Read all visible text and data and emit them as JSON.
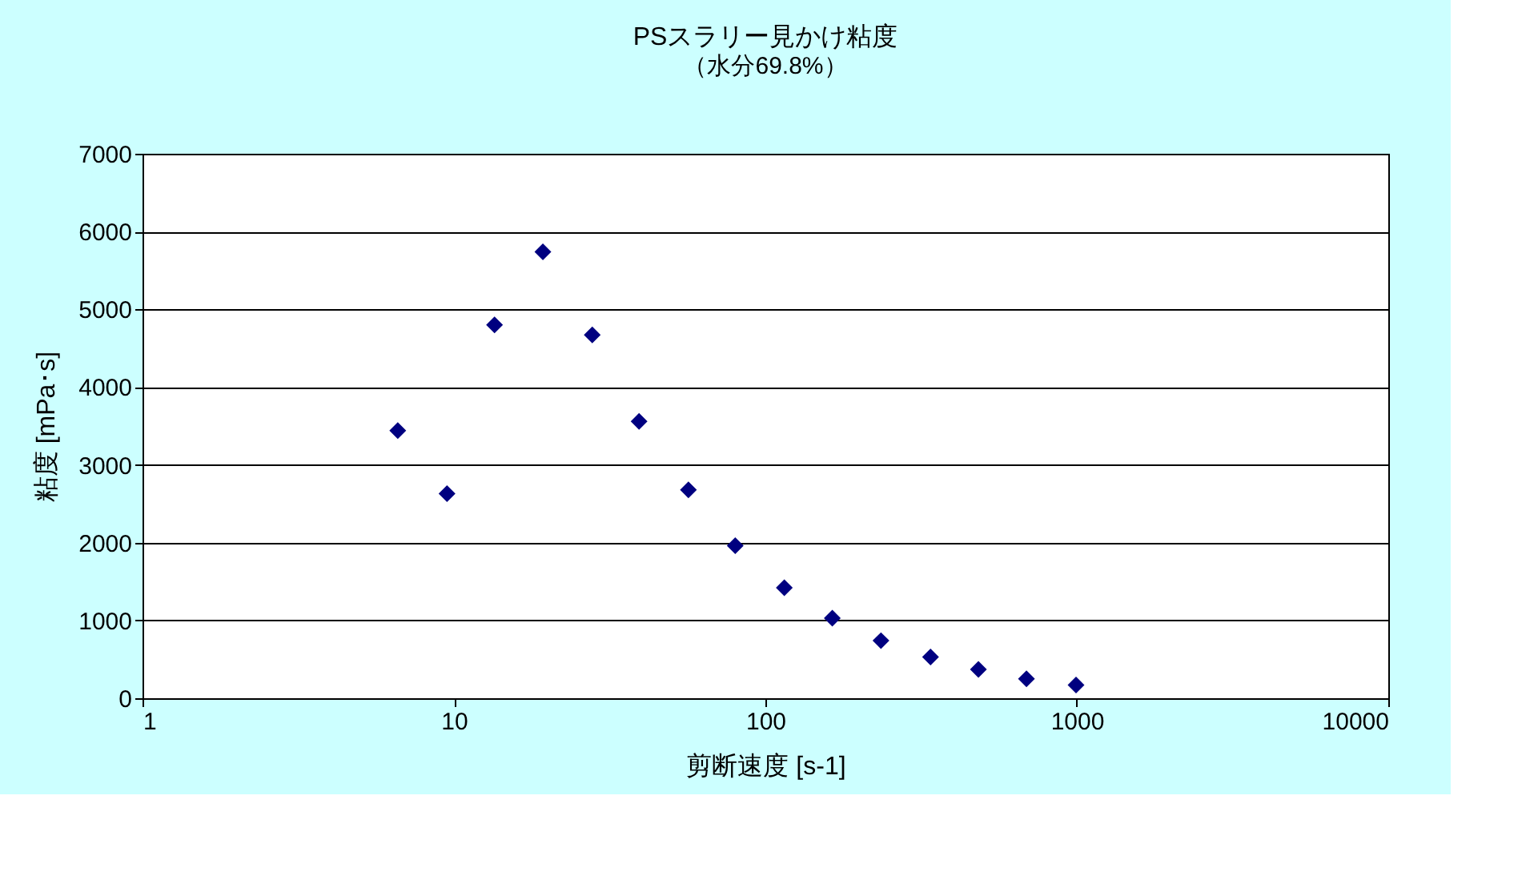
{
  "chart_data": {
    "type": "scatter",
    "title": "PSスラリー見かけ粘度",
    "subtitle": "（水分69.8%）",
    "xlabel": "剪断速度 [s-1]",
    "ylabel": "粘度 [mPa･s]",
    "x": [
      6.6,
      9.5,
      13.5,
      19.3,
      27.8,
      39.3,
      56.6,
      80,
      115,
      164,
      235,
      339,
      483,
      689,
      994
    ],
    "series": [
      {
        "color": "#000080",
        "values": [
          3440,
          2630,
          4800,
          5740,
          4670,
          3560,
          2680,
          1960,
          1420,
          1030,
          740,
          530,
          370,
          250,
          170
        ]
      }
    ],
    "xlim": [
      1,
      10000
    ],
    "xticks": [
      1,
      10,
      100,
      1000,
      10000
    ],
    "ylim": [
      0,
      7000
    ],
    "yticks": [
      0,
      1000,
      2000,
      3000,
      4000,
      5000,
      6000,
      7000
    ],
    "log": "x",
    "grid": "y",
    "marker": "diamond",
    "legend": false
  }
}
